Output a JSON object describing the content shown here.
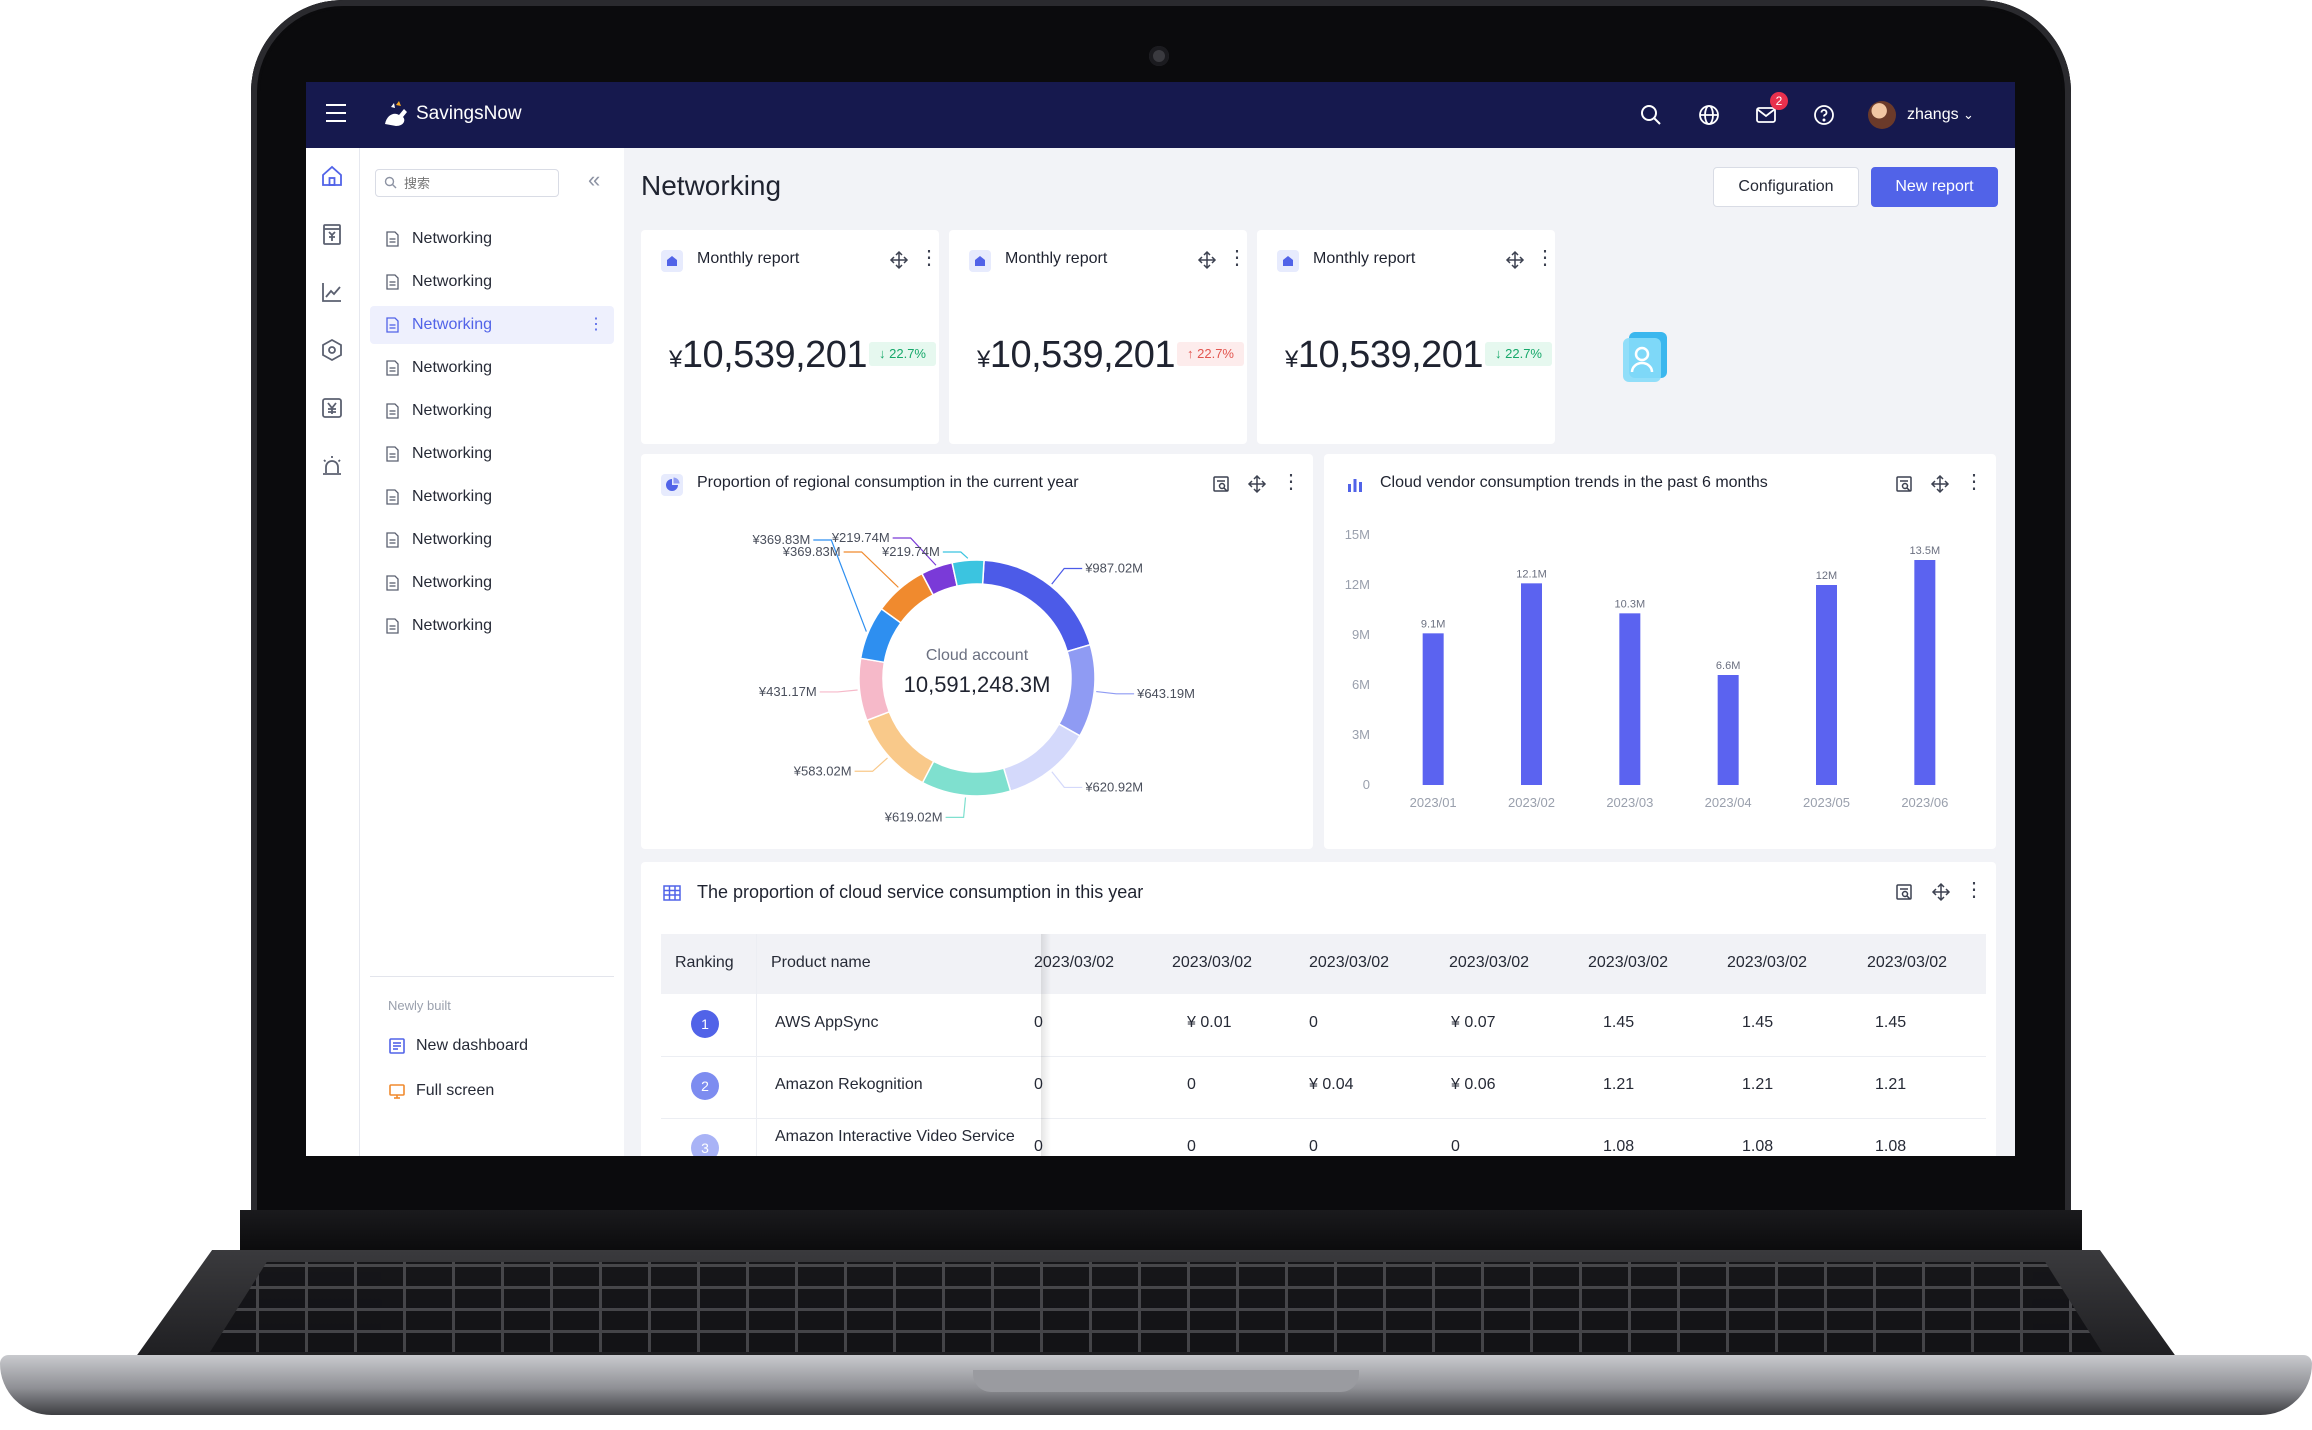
{
  "app": {
    "name": "SavingsNow",
    "user": "zhangs",
    "mail_count": "2"
  },
  "colors": {
    "topbar": "#16194e",
    "accent": "#5163e8",
    "bar": "#5b63f0",
    "up": "#e2554f",
    "down": "#16a86a"
  },
  "icons": {
    "top": [
      "search-icon",
      "globe-icon",
      "mail-icon",
      "help-icon"
    ],
    "rail": [
      "home-icon",
      "bill-icon",
      "trend-icon",
      "hexagon-icon",
      "yen-icon",
      "alarm-icon"
    ]
  },
  "sidebar": {
    "search_placeholder": "搜索",
    "items": [
      {
        "label": "Networking"
      },
      {
        "label": "Networking"
      },
      {
        "label": "Networking",
        "active": true
      },
      {
        "label": "Networking"
      },
      {
        "label": "Networking"
      },
      {
        "label": "Networking"
      },
      {
        "label": "Networking"
      },
      {
        "label": "Networking"
      },
      {
        "label": "Networking"
      },
      {
        "label": "Networking"
      }
    ],
    "section_label": "Newly built",
    "new_dashboard": "New dashboard",
    "full_screen": "Full screen"
  },
  "page": {
    "title": "Networking",
    "config_label": "Configuration",
    "new_report_label": "New report"
  },
  "kpis": [
    {
      "title": "Monthly report",
      "currency": "¥",
      "value": "10,539,201",
      "delta": "22.7%",
      "direction": "down",
      "art": "briefcase-icon"
    },
    {
      "title": "Monthly report",
      "currency": "¥",
      "value": "10,539,201",
      "delta": "22.7%",
      "direction": "up",
      "art": "star-icon"
    },
    {
      "title": "Monthly report",
      "currency": "¥",
      "value": "10,539,201",
      "delta": "22.7%",
      "direction": "down",
      "art": "person-icon"
    }
  ],
  "donut": {
    "title": "Proportion of regional consumption in the current year",
    "center_label": "Cloud account",
    "center_value": "10,591,248.3M"
  },
  "bars": {
    "title": "Cloud vendor consumption trends in the past 6 months"
  },
  "chart_data": [
    {
      "type": "pie",
      "title": "Proportion of regional consumption in the current year",
      "labels": [
        "¥987.02M",
        "¥643.19M",
        "¥620.92M",
        "¥619.02M",
        "¥583.02M",
        "¥431.17M",
        "¥369.83M",
        "¥369.83M",
        "¥219.74M",
        "¥219.74M"
      ],
      "values": [
        987.02,
        643.19,
        620.92,
        619.02,
        583.02,
        431.17,
        369.83,
        369.83,
        219.74,
        219.74
      ],
      "colors": [
        "#4c5be8",
        "#8f9bf3",
        "#d4d9fb",
        "#7fe0cf",
        "#f9c98a",
        "#f6b9c9",
        "#2e8ff0",
        "#f08a2e",
        "#7a3ad8",
        "#3bc4e0"
      ]
    },
    {
      "type": "bar",
      "title": "Cloud vendor consumption trends in the past 6 months",
      "categories": [
        "2023/01",
        "2023/02",
        "2023/03",
        "2023/04",
        "2023/05",
        "2023/06"
      ],
      "values": [
        9.1,
        12.1,
        10.3,
        6.6,
        12,
        13.5
      ],
      "data_labels": [
        "9.1M",
        "12.1M",
        "10.3M",
        "6.6M",
        "12M",
        "13.5M"
      ],
      "ylim": [
        0,
        15
      ],
      "yticks": [
        "0",
        "3M",
        "6M",
        "9M",
        "12M",
        "15M"
      ],
      "grid": false
    }
  ],
  "table": {
    "title": "The proportion of cloud service consumption in this year",
    "headers": [
      "Ranking",
      "Product name",
      "2023/03/02",
      "2023/03/02",
      "2023/03/02",
      "2023/03/02",
      "2023/03/02",
      "2023/03/02",
      "2023/03/02"
    ],
    "rows": [
      {
        "rank": "1",
        "name": "AWS AppSync",
        "cells": [
          "0",
          "¥ 0.01",
          "0",
          "¥ 0.07",
          "1.45",
          "1.45",
          "1.45"
        ]
      },
      {
        "rank": "2",
        "name": "Amazon Rekognition",
        "cells": [
          "0",
          "0",
          "¥ 0.04",
          "¥ 0.06",
          "1.21",
          "1.21",
          "1.21"
        ]
      },
      {
        "rank": "3",
        "name": "Amazon Interactive Video Service",
        "cells": [
          "0",
          "0",
          "0",
          "0",
          "1.08",
          "1.08",
          "1.08"
        ]
      }
    ]
  }
}
